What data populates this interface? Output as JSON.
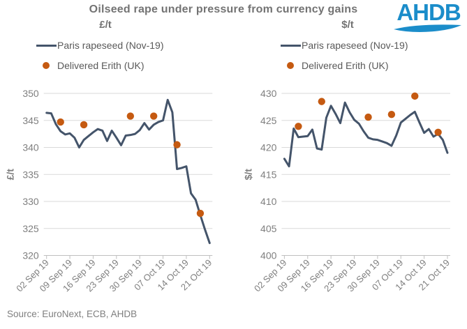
{
  "title": "Oilseed rape under pressure from currency gains",
  "logo": {
    "text": "AHDB"
  },
  "source": "Source: EuroNext, ECB, AHDB",
  "legend": {
    "line_label": "Paris rapeseed (Nov-19)",
    "dot_label": "Delivered Erith (UK)"
  },
  "colors": {
    "line": "#44546A",
    "dot": "#C55A11",
    "grid": "#D9D9D9",
    "axis_line": "#BFBFBF",
    "axis_text": "#7F7F7F",
    "title_text": "#737373",
    "legend_text": "#595959",
    "logo_blue": "#1B8DCA"
  },
  "chart_data": [
    {
      "type": "line",
      "title": "£/t",
      "ylabel": "£/t",
      "ylim": [
        320,
        350
      ],
      "ytick_step": 5,
      "grid": true,
      "legend_position": "top-left",
      "x": [
        "02 Sep 19",
        "03 Sep 19",
        "04 Sep 19",
        "05 Sep 19",
        "06 Sep 19",
        "09 Sep 19",
        "10 Sep 19",
        "11 Sep 19",
        "12 Sep 19",
        "13 Sep 19",
        "16 Sep 19",
        "17 Sep 19",
        "18 Sep 19",
        "19 Sep 19",
        "20 Sep 19",
        "23 Sep 19",
        "24 Sep 19",
        "25 Sep 19",
        "26 Sep 19",
        "27 Sep 19",
        "30 Sep 19",
        "01 Oct 19",
        "02 Oct 19",
        "03 Oct 19",
        "04 Oct 19",
        "07 Oct 19",
        "08 Oct 19",
        "09 Oct 19",
        "10 Oct 19",
        "11 Oct 19",
        "14 Oct 19",
        "15 Oct 19",
        "16 Oct 19",
        "17 Oct 19",
        "18 Oct 19",
        "21 Oct 19"
      ],
      "xtick_indices": [
        0,
        5,
        10,
        15,
        20,
        25,
        30,
        35
      ],
      "xtick_labels": [
        "02 Sep 19",
        "09 Sep 19",
        "16 Sep 19",
        "23 Sep 19",
        "30 Sep 19",
        "07 Oct 19",
        "14 Oct 19",
        "21 Oct 19"
      ],
      "series": [
        {
          "name": "Paris rapeseed (Nov-19)",
          "type": "line",
          "values": [
            346.4,
            346.3,
            344.3,
            343.0,
            342.4,
            342.6,
            341.8,
            340.0,
            341.4,
            342.1,
            342.8,
            343.4,
            343.1,
            341.2,
            343.1,
            341.8,
            340.4,
            342.2,
            342.3,
            342.5,
            343.2,
            344.5,
            343.3,
            344.2,
            344.7,
            345.0,
            348.8,
            346.5,
            336.0,
            336.2,
            336.5,
            331.5,
            330.3,
            327.5,
            324.8,
            322.3
          ]
        },
        {
          "name": "Delivered Erith (UK)",
          "type": "scatter",
          "indices": [
            3,
            8,
            18,
            23,
            28,
            33
          ],
          "dates": [
            "05 Sep 19",
            "12 Sep 19",
            "26 Sep 19",
            "03 Oct 19",
            "10 Oct 19",
            "17 Oct 19"
          ],
          "values": [
            344.7,
            344.2,
            345.8,
            345.8,
            340.5,
            327.8
          ]
        }
      ]
    },
    {
      "type": "line",
      "title": "$/t",
      "ylabel": "$/t",
      "ylim": [
        400,
        430
      ],
      "ytick_step": 5,
      "grid": true,
      "legend_position": "top-left",
      "x": [
        "02 Sep 19",
        "03 Sep 19",
        "04 Sep 19",
        "05 Sep 19",
        "06 Sep 19",
        "09 Sep 19",
        "10 Sep 19",
        "11 Sep 19",
        "12 Sep 19",
        "13 Sep 19",
        "16 Sep 19",
        "17 Sep 19",
        "18 Sep 19",
        "19 Sep 19",
        "20 Sep 19",
        "23 Sep 19",
        "24 Sep 19",
        "25 Sep 19",
        "26 Sep 19",
        "27 Sep 19",
        "30 Sep 19",
        "01 Oct 19",
        "02 Oct 19",
        "03 Oct 19",
        "04 Oct 19",
        "07 Oct 19",
        "08 Oct 19",
        "09 Oct 19",
        "10 Oct 19",
        "11 Oct 19",
        "14 Oct 19",
        "15 Oct 19",
        "16 Oct 19",
        "17 Oct 19",
        "18 Oct 19",
        "21 Oct 19"
      ],
      "xtick_indices": [
        0,
        5,
        10,
        15,
        20,
        25,
        30,
        35
      ],
      "xtick_labels": [
        "02 Sep 19",
        "09 Sep 19",
        "16 Sep 19",
        "23 Sep 19",
        "30 Sep 19",
        "07 Oct 19",
        "14 Oct 19",
        "21 Oct 19"
      ],
      "series": [
        {
          "name": "Paris rapeseed (Nov-19)",
          "type": "line",
          "values": [
            417.9,
            416.5,
            423.5,
            421.9,
            422.0,
            422.1,
            423.3,
            419.8,
            419.6,
            425.5,
            427.7,
            426.2,
            424.5,
            428.3,
            426.5,
            425.1,
            424.4,
            423.0,
            421.8,
            421.5,
            421.4,
            421.1,
            420.8,
            420.3,
            422.2,
            424.6,
            425.3,
            426.0,
            426.6,
            424.6,
            422.7,
            423.4,
            422.0,
            422.5,
            421.4,
            419.0
          ]
        },
        {
          "name": "Delivered Erith (UK)",
          "type": "scatter",
          "indices": [
            3,
            8,
            18,
            23,
            28,
            33
          ],
          "dates": [
            "05 Sep 19",
            "12 Sep 19",
            "26 Sep 19",
            "03 Oct 19",
            "10 Oct 19",
            "17 Oct 19"
          ],
          "values": [
            423.9,
            428.5,
            425.6,
            426.1,
            429.5,
            422.8
          ]
        }
      ]
    }
  ]
}
